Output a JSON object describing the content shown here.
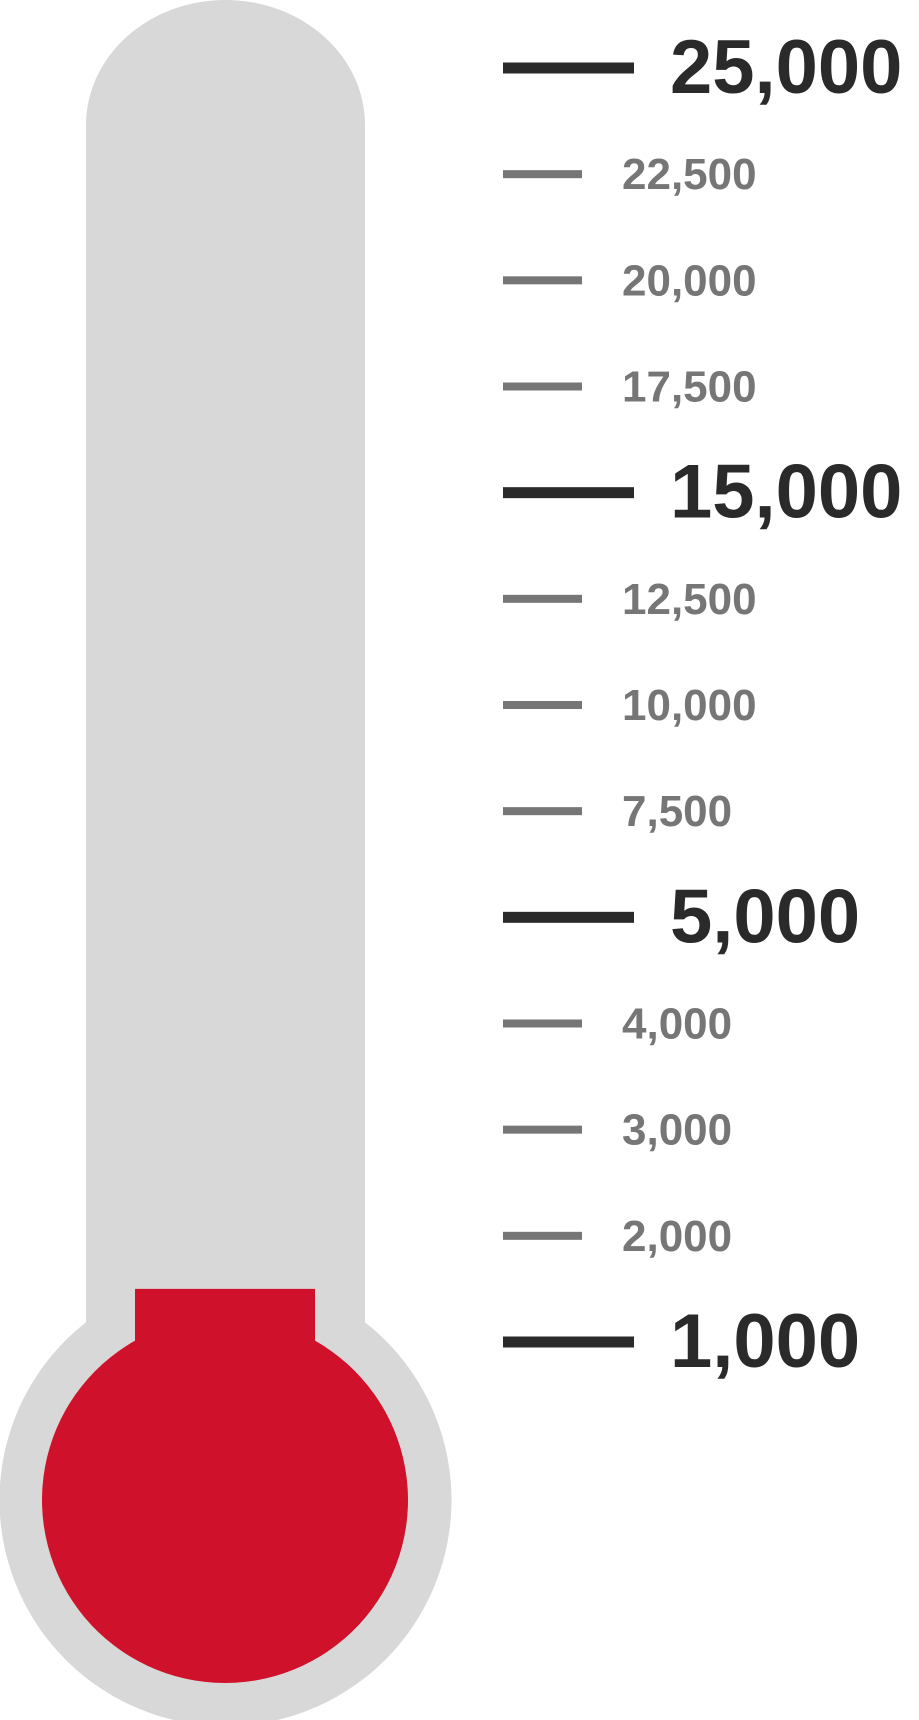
{
  "chart_data": {
    "type": "thermometer",
    "ticks": [
      {
        "value": 25000,
        "label": "25,000",
        "major": true
      },
      {
        "value": 22500,
        "label": "22,500",
        "major": false
      },
      {
        "value": 20000,
        "label": "20,000",
        "major": false
      },
      {
        "value": 17500,
        "label": "17,500",
        "major": false
      },
      {
        "value": 15000,
        "label": "15,000",
        "major": true
      },
      {
        "value": 12500,
        "label": "12,500",
        "major": false
      },
      {
        "value": 10000,
        "label": "10,000",
        "major": false
      },
      {
        "value": 7500,
        "label": "7,500",
        "major": false
      },
      {
        "value": 5000,
        "label": "5,000",
        "major": true
      },
      {
        "value": 4000,
        "label": "4,000",
        "major": false
      },
      {
        "value": 3000,
        "label": "3,000",
        "major": false
      },
      {
        "value": 2000,
        "label": "2,000",
        "major": false
      },
      {
        "value": 1000,
        "label": "1,000",
        "major": true
      }
    ],
    "fill_value": 1500,
    "colors": {
      "tube": "#d8d8d8",
      "fill": "#cf112b",
      "major_tick": "#2a2a2a",
      "minor_tick": "#767676"
    }
  }
}
